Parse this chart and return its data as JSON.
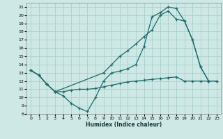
{
  "xlabel": "Humidex (Indice chaleur)",
  "bg_color": "#cde8e5",
  "grid_color": "#aacfcb",
  "line_color": "#1a6b6b",
  "xlim": [
    -0.5,
    23.5
  ],
  "ylim": [
    8,
    21.5
  ],
  "xticks": [
    0,
    1,
    2,
    3,
    4,
    5,
    6,
    7,
    8,
    9,
    10,
    11,
    12,
    13,
    14,
    15,
    16,
    17,
    18,
    19,
    20,
    21,
    22,
    23
  ],
  "yticks": [
    8,
    9,
    10,
    11,
    12,
    13,
    14,
    15,
    16,
    17,
    18,
    19,
    20,
    21
  ],
  "curve1_x": [
    0,
    1,
    2,
    3,
    4,
    5,
    6,
    7,
    8,
    9,
    10,
    11,
    12,
    13,
    14,
    15,
    16,
    17,
    18,
    19,
    20,
    21,
    22
  ],
  "curve1_y": [
    13.3,
    12.7,
    11.6,
    10.7,
    10.2,
    9.3,
    8.7,
    8.3,
    10.0,
    12.0,
    13.0,
    13.2,
    13.5,
    14.0,
    16.2,
    19.8,
    20.3,
    21.0,
    20.8,
    19.3,
    17.0,
    13.7,
    12.0
  ],
  "curve2_x": [
    0,
    1,
    2,
    3,
    4,
    5,
    6,
    7,
    8,
    9,
    10,
    11,
    12,
    13,
    14,
    15,
    16,
    17,
    18,
    19,
    20,
    21,
    22,
    23
  ],
  "curve2_y": [
    13.3,
    12.7,
    11.6,
    10.7,
    10.7,
    10.9,
    11.0,
    11.0,
    11.1,
    11.3,
    11.5,
    11.7,
    11.9,
    12.0,
    12.1,
    12.2,
    12.3,
    12.4,
    12.5,
    12.0,
    12.0,
    12.0,
    12.0,
    12.0
  ],
  "curve3_x": [
    0,
    1,
    2,
    3,
    9,
    10,
    11,
    12,
    13,
    14,
    15,
    16,
    17,
    18,
    19,
    20,
    21,
    22,
    23
  ],
  "curve3_y": [
    13.3,
    12.7,
    11.6,
    10.7,
    13.0,
    14.0,
    15.0,
    15.7,
    16.5,
    17.4,
    18.2,
    20.0,
    20.5,
    19.5,
    19.3,
    17.0,
    13.7,
    12.0,
    12.0
  ]
}
